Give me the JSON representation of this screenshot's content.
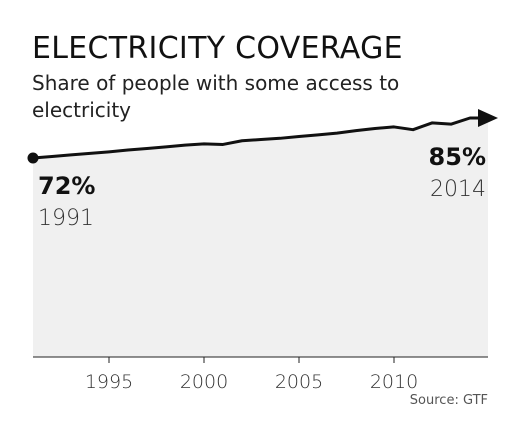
{
  "chart_data": {
    "type": "line",
    "title": "ELECTRICITY COVERAGE",
    "subtitle_line1": "Share of people with some access to",
    "subtitle_line2": "electricity",
    "x": [
      1991,
      1992,
      1993,
      1994,
      1995,
      1996,
      1997,
      1998,
      1999,
      2000,
      2001,
      2002,
      2003,
      2004,
      2005,
      2006,
      2007,
      2008,
      2009,
      2010,
      2011,
      2012,
      2013,
      2014
    ],
    "series": [
      {
        "values": [
          72,
          72.5,
          73,
          73.5,
          74,
          74.6,
          75.1,
          75.6,
          76.2,
          76.6,
          76.4,
          77.6,
          78.0,
          78.4,
          79.0,
          79.5,
          80.1,
          80.9,
          81.6,
          82.1,
          81.2,
          83.4,
          83.0,
          85
        ]
      }
    ],
    "x_ticks": [
      "1995",
      "2000",
      "2005",
      "2010"
    ],
    "start_annotation": {
      "value": "72%",
      "year": "1991"
    },
    "end_annotation": {
      "value": "85%",
      "year": "2014"
    },
    "source": "Source: GTF",
    "grid": false,
    "fill_below_line": true,
    "colors": {
      "line": "#111111",
      "fill": "#f0f0f0"
    }
  }
}
